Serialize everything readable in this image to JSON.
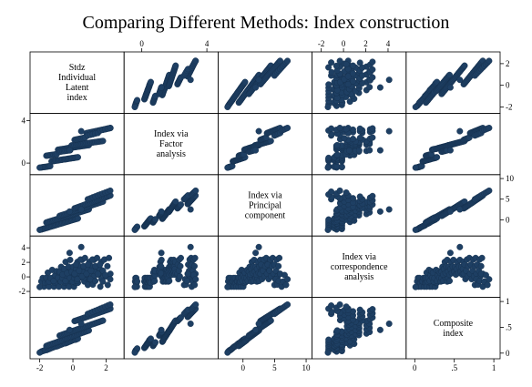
{
  "chart_data": {
    "type": "scatter",
    "title": "Comparing Different Methods: Index construction",
    "variables": [
      {
        "name": "Stdz Individual Latent index",
        "label_lines": [
          "Stdz",
          "Individual",
          "Latent",
          "index"
        ],
        "range": [
          -2.3,
          2.8
        ],
        "ticks": [
          {
            "value": -2,
            "label": "-2"
          },
          {
            "value": 0,
            "label": "0"
          },
          {
            "value": 2,
            "label": "2"
          }
        ]
      },
      {
        "name": "Index via Factor analysis",
        "label_lines": [
          "Index via",
          "Factor",
          "analysis"
        ],
        "range": [
          -0.8,
          4.4
        ],
        "ticks": [
          {
            "value": 0,
            "label": "0"
          },
          {
            "value": 4,
            "label": "4"
          }
        ]
      },
      {
        "name": "Index via Principal component",
        "label_lines": [
          "Index via",
          "Principal",
          "component"
        ],
        "range": [
          -3.2,
          10.2
        ],
        "ticks": [
          {
            "value": 0,
            "label": "0"
          },
          {
            "value": 5,
            "label": "5"
          },
          {
            "value": 10,
            "label": "10"
          }
        ]
      },
      {
        "name": "Index via correspondence analysis",
        "label_lines": [
          "Index via",
          "correspondence",
          "analysis"
        ],
        "range": [
          -2.4,
          5.2
        ],
        "ticks": [
          {
            "value": -2,
            "label": "-2"
          },
          {
            "value": 0,
            "label": "0"
          },
          {
            "value": 2,
            "label": "2"
          },
          {
            "value": 4,
            "label": "4"
          }
        ]
      },
      {
        "name": "Composite index",
        "label_lines": [
          "Composite",
          "index"
        ],
        "range": [
          -0.05,
          1.02
        ],
        "ticks": [
          {
            "value": 0,
            "label": "0"
          },
          {
            "value": 0.5,
            "label": ".5"
          },
          {
            "value": 1,
            "label": "1"
          }
        ]
      }
    ],
    "observations": [
      [
        -1.9,
        -0.41,
        -2.35,
        -0.62,
        0.03
      ],
      [
        -1.82,
        -0.39,
        -2.25,
        -0.15,
        0.04
      ],
      [
        -1.74,
        -0.37,
        -2.16,
        -1.34,
        0.05
      ],
      [
        -1.67,
        -0.36,
        -2.07,
        -0.82,
        0.06
      ],
      [
        -1.59,
        -0.34,
        -1.98,
        -0.15,
        0.06
      ],
      [
        -1.52,
        -0.32,
        -1.88,
        -0.82,
        0.07
      ],
      [
        -1.44,
        -0.3,
        -1.79,
        -1.34,
        0.08
      ],
      [
        -1.37,
        -0.28,
        -1.7,
        -0.62,
        0.09
      ],
      [
        -1.29,
        0.16,
        -1.61,
        -0.62,
        0.1
      ],
      [
        -1.21,
        0.18,
        -1.52,
        -0.15,
        0.11
      ],
      [
        -1.14,
        0.2,
        -1.42,
        -1.34,
        0.12
      ],
      [
        -1.06,
        0.22,
        -1.33,
        -0.82,
        0.13
      ],
      [
        -0.99,
        0.24,
        -1.24,
        -0.15,
        0.13
      ],
      [
        -0.91,
        0.25,
        -1.15,
        -0.82,
        0.14
      ],
      [
        -0.84,
        0.27,
        -1.05,
        -1.34,
        0.15
      ],
      [
        -0.76,
        0.29,
        -0.96,
        -0.62,
        0.16
      ],
      [
        -0.68,
        0.31,
        -0.87,
        -0.62,
        0.17
      ],
      [
        -0.61,
        0.33,
        -0.78,
        -0.15,
        0.18
      ],
      [
        -0.53,
        0.35,
        -0.68,
        -1.34,
        0.19
      ],
      [
        -0.46,
        0.36,
        -0.59,
        -0.82,
        0.19
      ],
      [
        -0.38,
        0.38,
        -0.5,
        -0.15,
        0.2
      ],
      [
        -0.31,
        0.4,
        -0.41,
        -0.82,
        0.21
      ],
      [
        -0.23,
        0.42,
        -0.32,
        -1.34,
        0.22
      ],
      [
        -0.15,
        0.44,
        -0.22,
        -0.62,
        0.23
      ],
      [
        -0.08,
        0.46,
        -0.13,
        -0.62,
        0.24
      ],
      [
        0.0,
        0.47,
        -0.04,
        -0.15,
        0.25
      ],
      [
        0.07,
        0.49,
        0.05,
        -1.34,
        0.26
      ],
      [
        0.15,
        0.51,
        0.15,
        -0.82,
        0.26
      ],
      [
        0.22,
        0.53,
        0.24,
        -0.15,
        0.27
      ],
      [
        0.3,
        0.55,
        0.33,
        -0.82,
        0.28
      ],
      [
        -1.6,
        0.69,
        -0.66,
        -0.11,
        0.14
      ],
      [
        -1.51,
        0.71,
        -0.55,
        0.58,
        0.15
      ],
      [
        -1.43,
        0.73,
        -0.44,
        -0.64,
        0.16
      ],
      [
        -1.34,
        0.75,
        -0.33,
        -0.17,
        0.17
      ],
      [
        -1.25,
        0.77,
        -0.22,
        0.96,
        0.18
      ],
      [
        -1.16,
        0.79,
        -0.11,
        -0.56,
        0.19
      ],
      [
        -1.07,
        0.81,
        0.0,
        0.22,
        0.2
      ],
      [
        -0.98,
        0.83,
        0.11,
        0.79,
        0.21
      ],
      [
        -0.9,
        1.26,
        0.22,
        -0.11,
        0.22
      ],
      [
        -0.81,
        1.28,
        0.33,
        0.58,
        0.23
      ],
      [
        -0.72,
        1.3,
        0.44,
        -0.64,
        0.24
      ],
      [
        -0.63,
        1.32,
        0.55,
        -0.17,
        0.25
      ],
      [
        -0.54,
        1.34,
        0.66,
        0.96,
        0.27
      ],
      [
        -0.45,
        1.36,
        0.77,
        -0.56,
        0.28
      ],
      [
        -0.37,
        1.39,
        0.88,
        0.22,
        0.29
      ],
      [
        -0.28,
        1.41,
        0.99,
        0.79,
        0.3
      ],
      [
        -0.19,
        1.43,
        1.1,
        -0.11,
        0.31
      ],
      [
        -0.1,
        1.45,
        1.21,
        0.58,
        0.32
      ],
      [
        -0.01,
        1.47,
        1.32,
        -0.64,
        0.33
      ],
      [
        0.08,
        1.49,
        1.43,
        -0.17,
        0.34
      ],
      [
        0.16,
        1.51,
        1.54,
        0.96,
        0.35
      ],
      [
        0.25,
        1.53,
        1.65,
        -0.56,
        0.36
      ],
      [
        0.34,
        1.55,
        1.76,
        0.22,
        0.37
      ],
      [
        0.43,
        1.57,
        1.87,
        0.79,
        0.38
      ],
      [
        0.52,
        1.59,
        1.98,
        -0.11,
        0.39
      ],
      [
        0.61,
        1.61,
        2.09,
        0.58,
        0.4
      ],
      [
        0.69,
        1.63,
        2.2,
        -0.64,
        0.41
      ],
      [
        0.78,
        1.65,
        2.31,
        -0.17,
        0.42
      ],
      [
        0.87,
        1.67,
        2.42,
        0.96,
        0.43
      ],
      [
        0.96,
        1.69,
        2.53,
        -0.56,
        0.44
      ],
      [
        -0.8,
        1.07,
        0.93,
        0.7,
        0.34
      ],
      [
        -0.71,
        1.09,
        1.05,
        1.38,
        0.35
      ],
      [
        -0.62,
        1.11,
        1.17,
        0.31,
        0.36
      ],
      [
        -0.53,
        1.13,
        1.29,
        1.09,
        0.37
      ],
      [
        -0.44,
        1.15,
        1.41,
        2.06,
        0.38
      ],
      [
        -0.35,
        1.17,
        1.53,
        0.52,
        0.39
      ],
      [
        -0.26,
        1.19,
        1.65,
        1.41,
        0.4
      ],
      [
        -0.17,
        1.21,
        1.77,
        2.34,
        0.41
      ],
      [
        -0.08,
        1.66,
        1.89,
        0.7,
        0.42
      ],
      [
        0.01,
        1.68,
        2.01,
        1.38,
        0.43
      ],
      [
        0.1,
        1.7,
        2.13,
        0.31,
        0.44
      ],
      [
        0.19,
        1.72,
        2.25,
        1.09,
        0.45
      ],
      [
        0.28,
        1.74,
        2.37,
        2.06,
        0.46
      ],
      [
        0.37,
        1.76,
        2.49,
        0.52,
        0.47
      ],
      [
        0.46,
        1.78,
        2.61,
        1.41,
        0.48
      ],
      [
        0.55,
        1.8,
        2.73,
        2.34,
        0.49
      ],
      [
        0.64,
        1.82,
        2.85,
        0.7,
        0.5
      ],
      [
        0.73,
        1.84,
        2.97,
        1.38,
        0.51
      ],
      [
        0.82,
        1.86,
        3.09,
        0.31,
        0.52
      ],
      [
        0.91,
        1.88,
        3.21,
        1.09,
        0.53
      ],
      [
        1.0,
        1.9,
        3.33,
        2.06,
        0.54
      ],
      [
        1.09,
        1.92,
        3.45,
        0.52,
        0.55
      ],
      [
        1.18,
        1.94,
        3.57,
        1.41,
        0.56
      ],
      [
        1.27,
        1.96,
        3.69,
        2.34,
        0.57
      ],
      [
        1.36,
        1.98,
        3.81,
        0.7,
        0.58
      ],
      [
        1.45,
        2.0,
        3.93,
        1.38,
        0.59
      ],
      [
        1.54,
        2.02,
        4.05,
        0.31,
        0.6
      ],
      [
        1.63,
        2.04,
        4.17,
        1.09,
        0.61
      ],
      [
        1.72,
        2.06,
        4.29,
        2.06,
        0.62
      ],
      [
        1.81,
        2.08,
        4.41,
        0.52,
        0.63
      ],
      [
        0.1,
        2.19,
        2.76,
        0.42,
        0.62
      ],
      [
        0.19,
        2.22,
        2.89,
        1.69,
        0.63
      ],
      [
        0.28,
        2.25,
        3.02,
        -0.3,
        0.64
      ],
      [
        0.37,
        2.28,
        3.15,
        0.85,
        0.65
      ],
      [
        0.46,
        2.31,
        3.28,
        2.39,
        0.66
      ],
      [
        0.55,
        2.34,
        3.41,
        0.07,
        0.67
      ],
      [
        0.64,
        2.37,
        3.54,
        1.48,
        0.68
      ],
      [
        0.73,
        2.4,
        3.67,
        2.6,
        0.69
      ],
      [
        0.82,
        2.82,
        3.8,
        0.42,
        0.7
      ],
      [
        0.91,
        2.85,
        3.93,
        1.69,
        0.71
      ],
      [
        1.0,
        2.88,
        4.06,
        -0.3,
        0.72
      ],
      [
        1.09,
        2.91,
        4.19,
        0.85,
        0.73
      ],
      [
        1.18,
        2.94,
        4.32,
        2.39,
        0.74
      ],
      [
        1.27,
        2.97,
        4.45,
        0.07,
        0.75
      ],
      [
        1.36,
        3.0,
        4.58,
        1.48,
        0.76
      ],
      [
        1.45,
        3.03,
        4.71,
        2.6,
        0.77
      ],
      [
        1.54,
        3.06,
        4.84,
        0.42,
        0.78
      ],
      [
        1.63,
        3.09,
        4.97,
        1.69,
        0.79
      ],
      [
        1.72,
        3.12,
        5.1,
        -0.3,
        0.8
      ],
      [
        1.81,
        3.15,
        5.23,
        0.85,
        0.81
      ],
      [
        1.9,
        3.18,
        5.36,
        2.39,
        0.82
      ],
      [
        1.99,
        3.21,
        5.49,
        0.07,
        0.83
      ],
      [
        2.08,
        3.24,
        5.62,
        1.48,
        0.84
      ],
      [
        2.17,
        3.27,
        5.75,
        2.6,
        0.85
      ],
      [
        2.26,
        3.3,
        5.88,
        0.42,
        0.86
      ],
      [
        0.9,
        2.6,
        4.98,
        -1.1,
        0.76
      ],
      [
        1.05,
        2.66,
        5.21,
        -0.33,
        0.78
      ],
      [
        1.2,
        2.72,
        5.44,
        -1.06,
        0.8
      ],
      [
        1.35,
        2.78,
        5.67,
        -0.57,
        0.82
      ],
      [
        1.5,
        2.84,
        5.9,
        0.41,
        0.84
      ],
      [
        1.65,
        3.07,
        6.13,
        -1.35,
        0.86
      ],
      [
        1.8,
        3.13,
        6.36,
        -0.64,
        0.88
      ],
      [
        1.95,
        3.19,
        6.59,
        0.25,
        0.9
      ],
      [
        2.1,
        3.25,
        6.82,
        -1.1,
        0.92
      ],
      [
        2.25,
        3.31,
        7.05,
        -0.33,
        0.94
      ],
      [
        0.5,
        3.0,
        2.5,
        4.1,
        0.57
      ],
      [
        -0.2,
        1.2,
        2.0,
        3.3,
        0.45
      ],
      [
        -2.0,
        -0.43,
        -2.45,
        -1.4,
        0.01
      ]
    ]
  }
}
